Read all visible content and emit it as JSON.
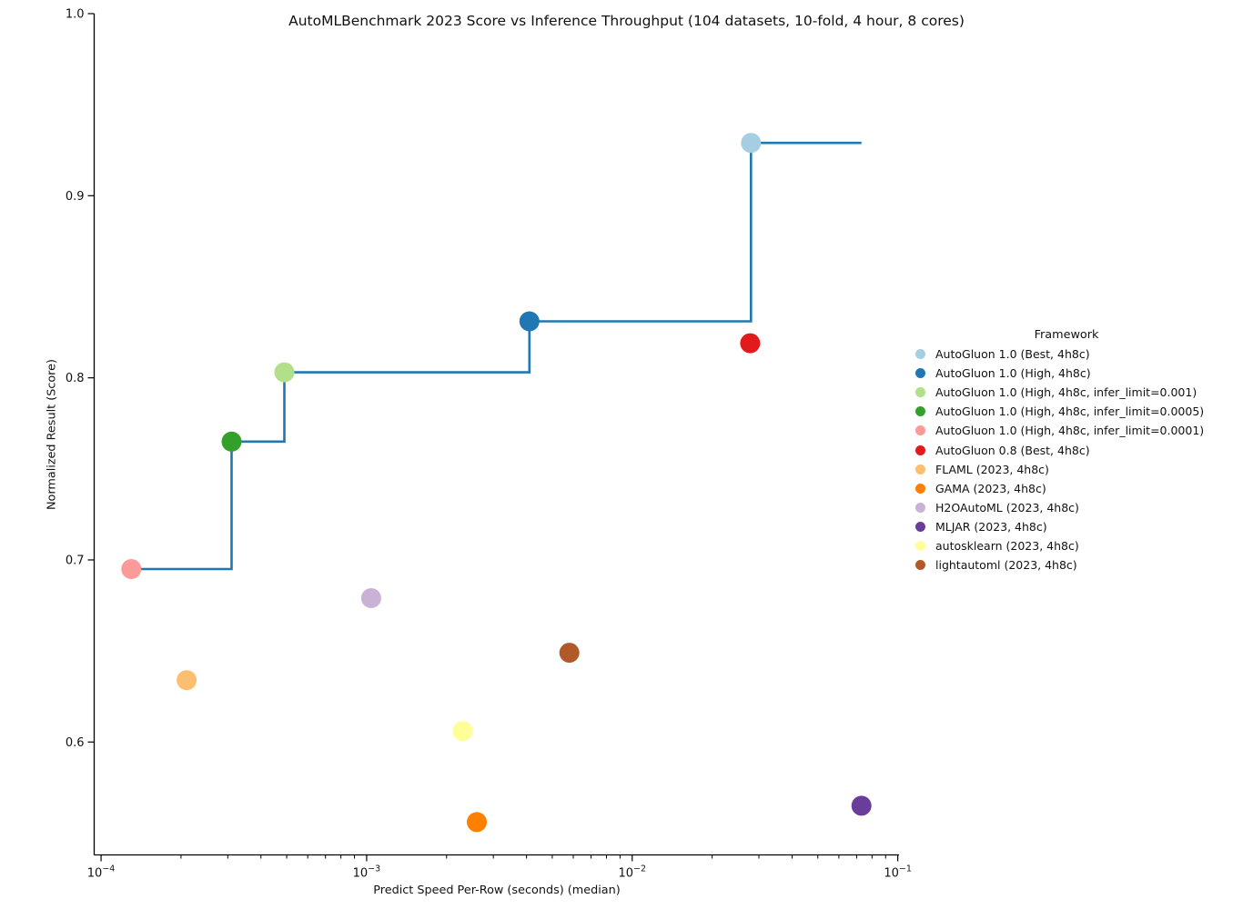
{
  "title": "AutoMLBenchmark 2023 Score vs Inference Throughput (104 datasets, 10-fold, 4 hour, 8 cores)",
  "chart_data": {
    "type": "scatter",
    "title": "AutoMLBenchmark 2023 Score vs Inference Throughput (104 datasets, 10-fold, 4 hour, 8 cores)",
    "xlabel": "Predict Speed Per-Row (seconds) (median)",
    "ylabel": "Normalized Result (Score)",
    "x_scale": "log10",
    "xlim": [
      9.42e-05,
      0.1011
    ],
    "ylim": [
      0.538,
      1.0
    ],
    "x_tick_exponents": [
      -4,
      -3,
      -2,
      -1
    ],
    "y_ticks": [
      1.0,
      0.9,
      0.8,
      0.7,
      0.6
    ],
    "grid": false,
    "legend_title": "Framework",
    "legend_position": "right-outside",
    "axis_color": "#000000",
    "marker_diameter_px": 22,
    "series": [
      {
        "name": "AutoGluon 1.0 (Best, 4h8c)",
        "color": "#a6cee3",
        "x": 0.028,
        "y": 0.929
      },
      {
        "name": "AutoGluon 1.0 (High, 4h8c)",
        "color": "#1f78b4",
        "x": 0.0041,
        "y": 0.831
      },
      {
        "name": "AutoGluon 1.0 (High, 4h8c, infer_limit=0.001)",
        "color": "#b2df8a",
        "x": 0.00049,
        "y": 0.803
      },
      {
        "name": "AutoGluon 1.0 (High, 4h8c, infer_limit=0.0005)",
        "color": "#33a02c",
        "x": 0.00031,
        "y": 0.765
      },
      {
        "name": "AutoGluon 1.0 (High, 4h8c, infer_limit=0.0001)",
        "color": "#fb9a99",
        "x": 0.00013,
        "y": 0.695
      },
      {
        "name": "AutoGluon 0.8 (Best, 4h8c)",
        "color": "#e31a1c",
        "x": 0.0278,
        "y": 0.819
      },
      {
        "name": "FLAML (2023, 4h8c)",
        "color": "#fdbf6f",
        "x": 0.00021,
        "y": 0.634
      },
      {
        "name": "GAMA (2023, 4h8c)",
        "color": "#ff7f00",
        "x": 0.0026,
        "y": 0.556
      },
      {
        "name": "H2OAutoML (2023, 4h8c)",
        "color": "#cab2d6",
        "x": 0.00104,
        "y": 0.679
      },
      {
        "name": "MLJAR (2023, 4h8c)",
        "color": "#6a3d9a",
        "x": 0.073,
        "y": 0.565
      },
      {
        "name": "autosklearn (2023, 4h8c)",
        "color": "#ffff99",
        "x": 0.0023,
        "y": 0.606
      },
      {
        "name": "lightautoml (2023, 4h8c)",
        "color": "#b15928",
        "x": 0.0058,
        "y": 0.649
      }
    ],
    "pareto_frontier": {
      "style": "step-post",
      "color": "#1f77b4",
      "points": [
        [
          0.00013,
          0.695
        ],
        [
          0.00031,
          0.765
        ],
        [
          0.00049,
          0.803
        ],
        [
          0.0041,
          0.831
        ],
        [
          0.028,
          0.929
        ]
      ],
      "extend_to_x": 0.073
    }
  }
}
